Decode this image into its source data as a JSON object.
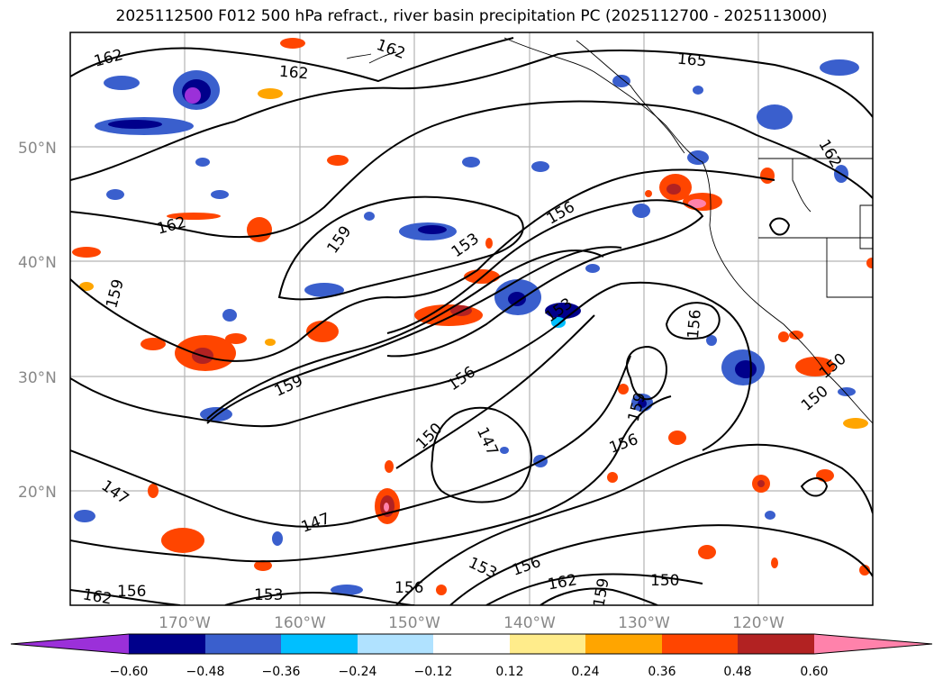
{
  "title": "2025112500 F012 500 hPa refract., river basin precipitation PC (2025112700 - 2025113000)",
  "latitude_labels": [
    "50°N",
    "40°N",
    "30°N",
    "20°N"
  ],
  "longitude_labels": [
    "170°W",
    "160°W",
    "150°W",
    "140°W",
    "130°W",
    "120°W"
  ],
  "contour_labels": [
    {
      "text": "162"
    },
    {
      "text": "162"
    },
    {
      "text": "162"
    },
    {
      "text": "165"
    },
    {
      "text": "162"
    },
    {
      "text": "162"
    },
    {
      "text": "159"
    },
    {
      "text": "153"
    },
    {
      "text": "156"
    },
    {
      "text": "159"
    },
    {
      "text": "153"
    },
    {
      "text": "156"
    },
    {
      "text": "159"
    },
    {
      "text": "156"
    },
    {
      "text": "150"
    },
    {
      "text": "147"
    },
    {
      "text": "159"
    },
    {
      "text": "156"
    },
    {
      "text": "150"
    },
    {
      "text": "150"
    },
    {
      "text": "147"
    },
    {
      "text": "147"
    },
    {
      "text": "153"
    },
    {
      "text": "156"
    },
    {
      "text": "162"
    },
    {
      "text": "150"
    },
    {
      "text": "156"
    },
    {
      "text": "153"
    },
    {
      "text": "156"
    },
    {
      "text": "162"
    },
    {
      "text": "159"
    }
  ],
  "colorbar": {
    "ticks": [
      "−0.60",
      "−0.48",
      "−0.36",
      "−0.24",
      "−0.12",
      "0.12",
      "0.24",
      "0.36",
      "0.48",
      "0.60"
    ],
    "colors": [
      "#9b30d9",
      "#00008b",
      "#3a5fcd",
      "#00bfff",
      "#b0e2ff",
      "#ffffff",
      "#ffec8b",
      "#ffa500",
      "#ff4500",
      "#b22222",
      "#ff82ab"
    ]
  }
}
